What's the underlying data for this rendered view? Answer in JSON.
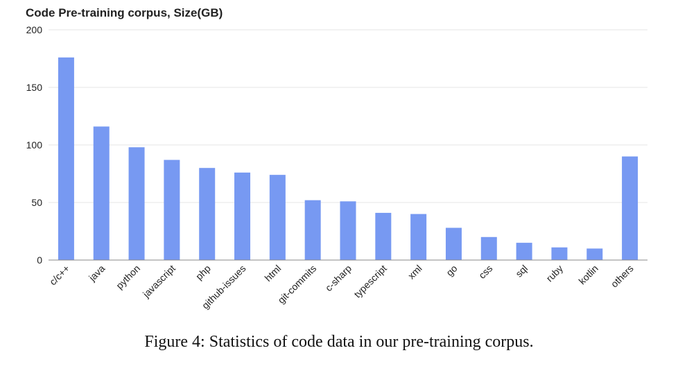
{
  "chart_data": {
    "type": "bar",
    "title": "Code Pre-training corpus, Size(GB)",
    "xlabel": "",
    "ylabel": "",
    "ylim": [
      0,
      200
    ],
    "yticks": [
      0,
      50,
      100,
      150,
      200
    ],
    "grid": true,
    "categories": [
      "c/c++",
      "java",
      "python",
      "javascript",
      "php",
      "github-issues",
      "html",
      "git-commits",
      "c-sharp",
      "typescript",
      "xml",
      "go",
      "css",
      "sql",
      "ruby",
      "kotlin",
      "others"
    ],
    "values": [
      176,
      116,
      98,
      87,
      80,
      76,
      74,
      52,
      51,
      41,
      40,
      28,
      20,
      15,
      11,
      10,
      90
    ],
    "bar_color": "#7799f2"
  },
  "caption": "Figure 4: Statistics of code data in our pre-training corpus."
}
